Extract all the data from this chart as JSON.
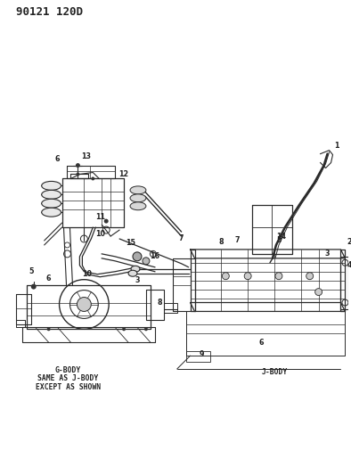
{
  "title_code": "90121 120D",
  "background_color": "#ffffff",
  "text_color": "#222222",
  "line_color": "#2a2a2a",
  "label_g_body": "G-BODY\nSAME AS J-BODY\nEXCEPT AS SHOWN",
  "label_j_body": "J-BODY",
  "number_fontsize": 6.0,
  "title_fontsize": 9.5,
  "label_fontsize": 5.8
}
